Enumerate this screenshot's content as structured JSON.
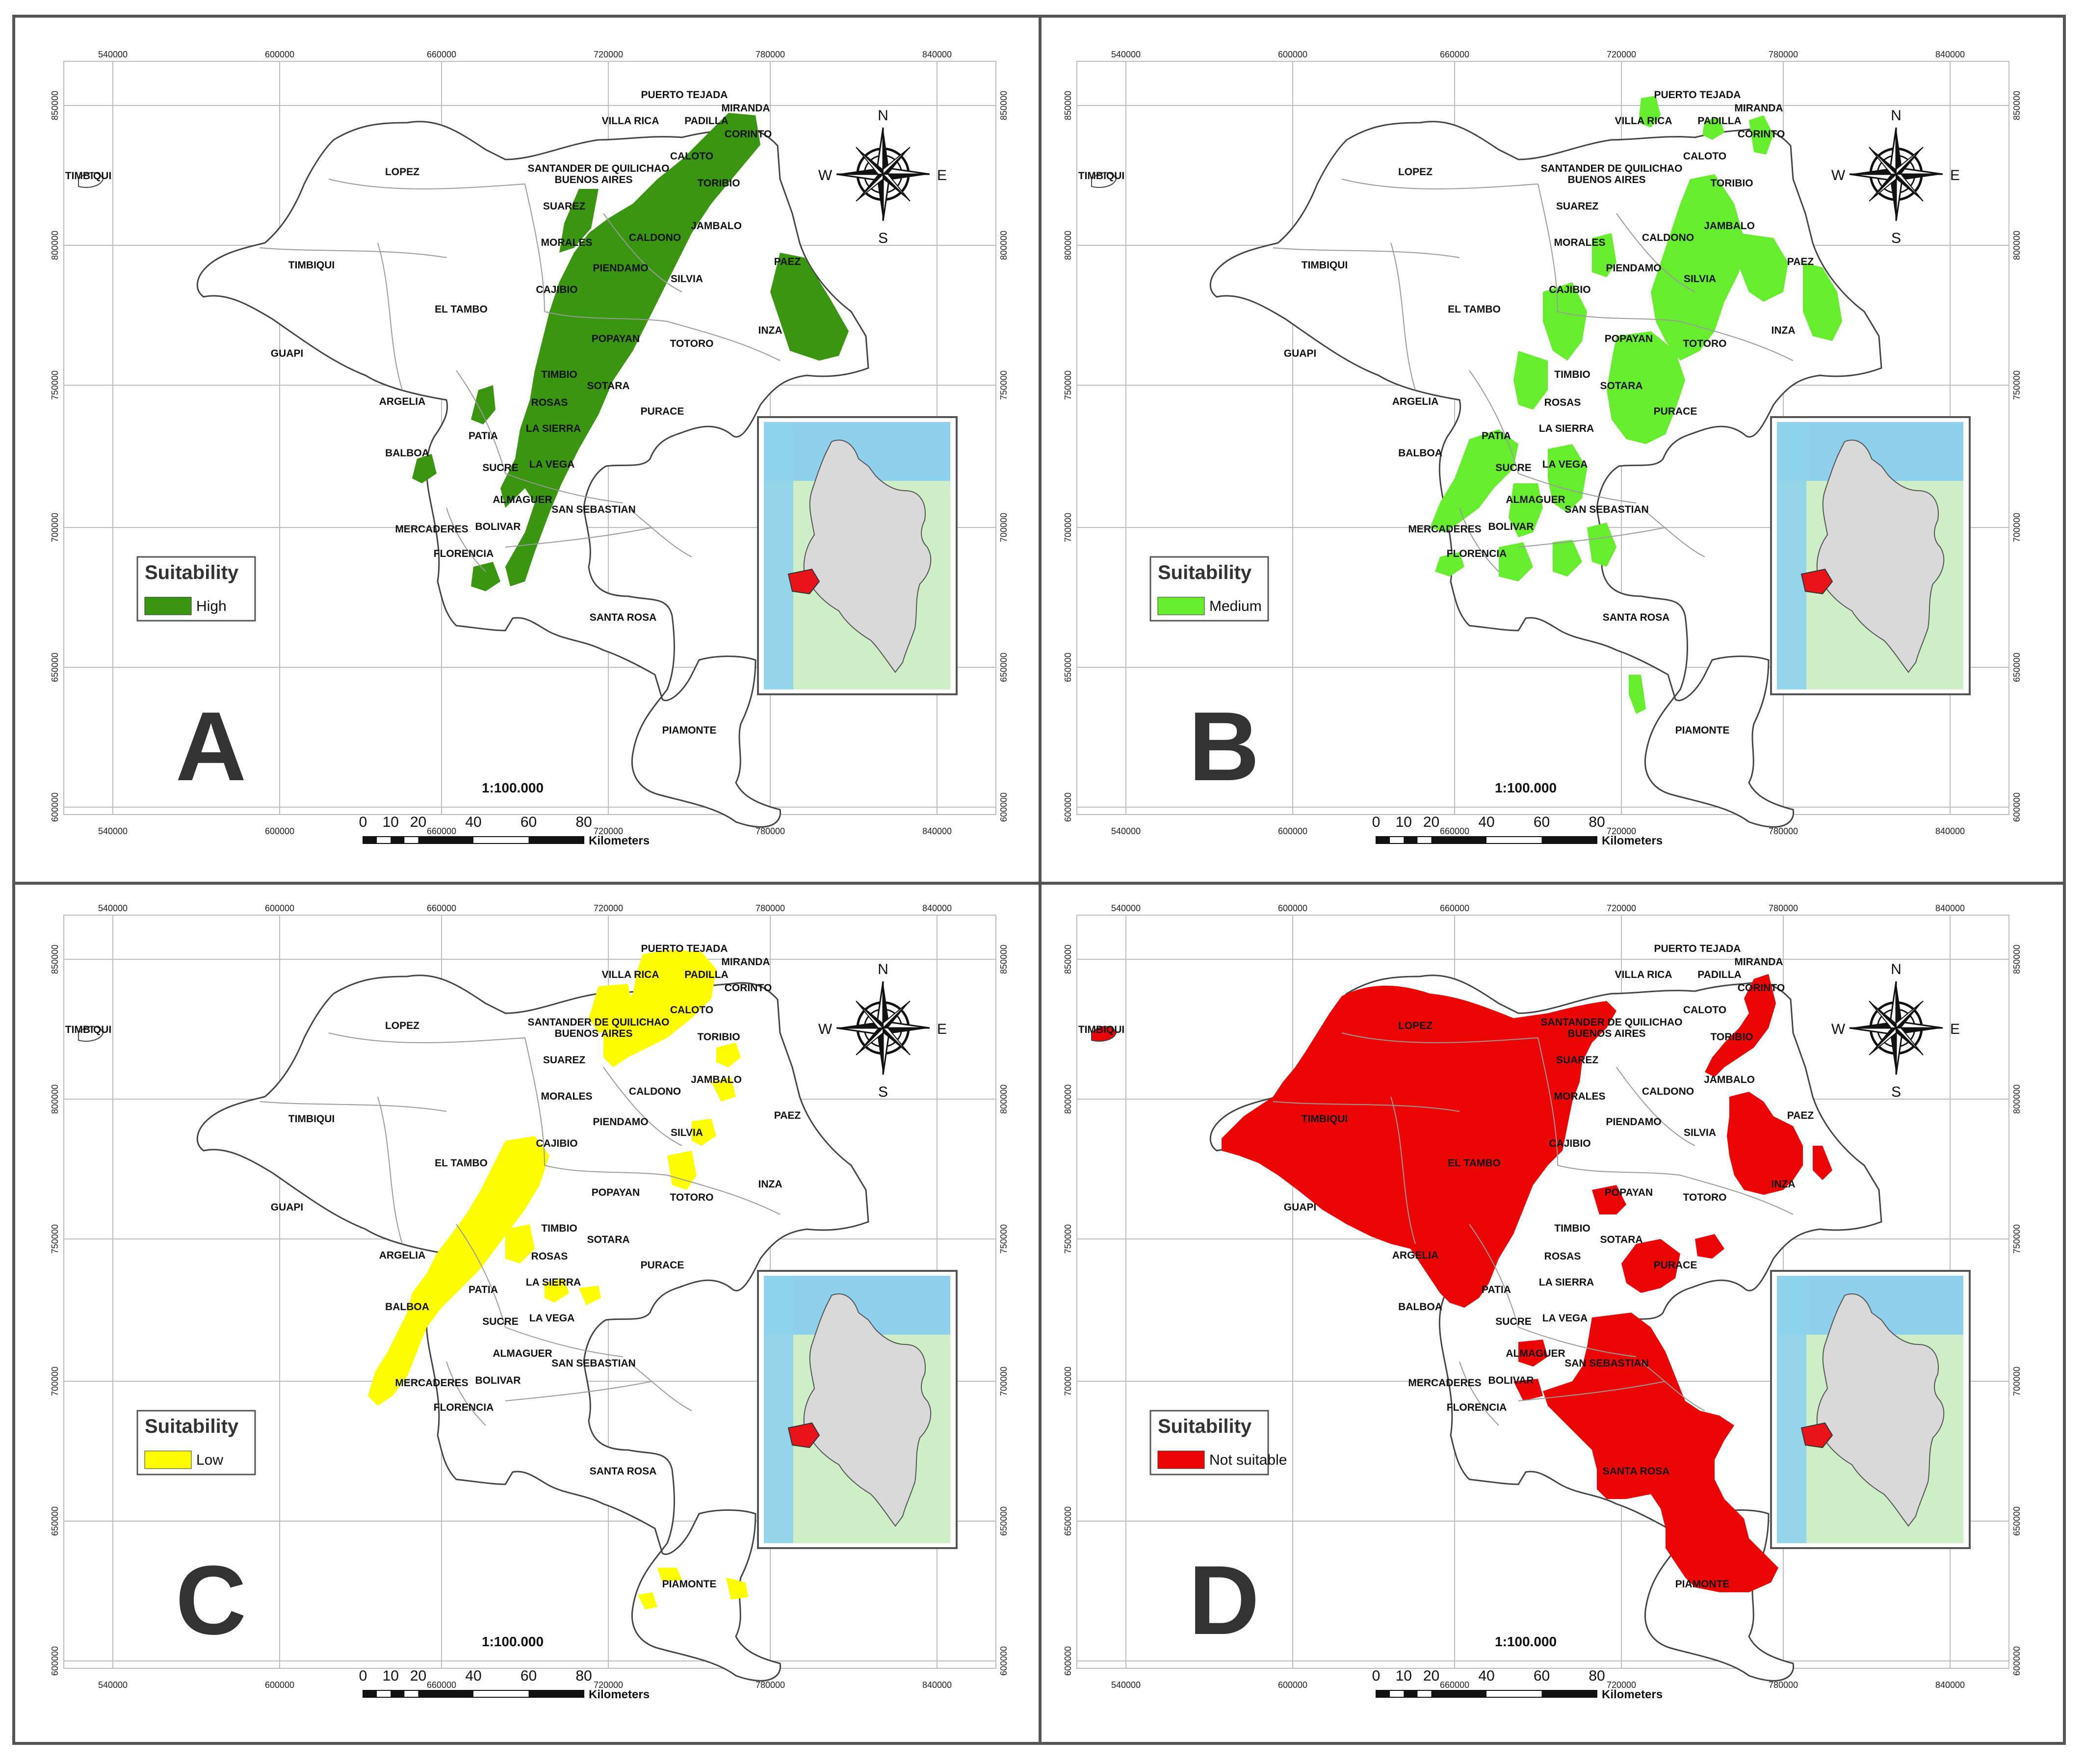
{
  "panels": [
    {
      "letter": "A",
      "legend_title": "Suitability",
      "legend_label": "High",
      "color": "#3a9611",
      "scale_text": "1:100.000",
      "scale_ticks": [
        "0",
        "10",
        "20",
        "40",
        "60",
        "80"
      ],
      "scale_unit": "Kilometers",
      "x_ticks": [
        "540000",
        "600000",
        "660000",
        "720000",
        "780000",
        "840000"
      ],
      "y_ticks": [
        "850000",
        "800000",
        "750000",
        "700000",
        "650000",
        "600000"
      ],
      "compass": {
        "n": "N",
        "s": "S",
        "e": "E",
        "w": "W"
      },
      "places": [
        "PUERTO TEJADA",
        "MIRANDA",
        "PADILLA",
        "VILLA RICA",
        "CORINTO",
        "CALOTO",
        "TIMBIQUI",
        "LOPEZ",
        "SANTANDER DE QUILICHAO",
        "BUENOS AIRES",
        "TORIBIO",
        "SUAREZ",
        "JAMBALO",
        "MORALES",
        "CALDONO",
        "TIMBIQUI",
        "PAEZ",
        "PIENDAMO",
        "SILVIA",
        "CAJIBIO",
        "EL TAMBO",
        "INZA",
        "POPAYAN",
        "TOTORO",
        "GUAPI",
        "TIMBIO",
        "SOTARA",
        "ARGELIA",
        "ROSAS",
        "PURACE",
        "PATIA",
        "LA SIERRA",
        "BALBOA",
        "SUCRE",
        "LA VEGA",
        "ALMAGUER",
        "SAN SEBASTIAN",
        "MERCADERES",
        "BOLIVAR",
        "FLORENCIA",
        "SANTA ROSA",
        "PIAMONTE"
      ]
    },
    {
      "letter": "B",
      "legend_title": "Suitability",
      "legend_label": "Medium",
      "color": "#66ee2e",
      "scale_text": "1:100.000",
      "scale_ticks": [
        "0",
        "10",
        "20",
        "40",
        "60",
        "80"
      ],
      "scale_unit": "Kilometers",
      "x_ticks": [
        "540000",
        "600000",
        "660000",
        "720000",
        "780000",
        "840000"
      ],
      "y_ticks": [
        "850000",
        "800000",
        "750000",
        "700000",
        "650000",
        "600000"
      ],
      "compass": {
        "n": "N",
        "s": "S",
        "e": "E",
        "w": "W"
      },
      "places": [
        "PUERTO TEJADA",
        "MIRANDA",
        "PADILLA",
        "VILLA RICA",
        "CORINTO",
        "CALOTO",
        "TIMBIQUI",
        "LOPEZ",
        "SANTANDER DE QUILICHAO",
        "BUENOS AIRES",
        "TORIBIO",
        "SUAREZ",
        "JAMBALO",
        "MORALES",
        "CALDONO",
        "TIMBIQUI",
        "PAEZ",
        "PIENDAMO",
        "SILVIA",
        "CAJIBIO",
        "EL TAMBO",
        "INZA",
        "POPAYAN",
        "TOTORO",
        "GUAPI",
        "TIMBIO",
        "SOTARA",
        "ARGELIA",
        "ROSAS",
        "PURACE",
        "PATIA",
        "LA SIERRA",
        "BALBOA",
        "SUCRE",
        "LA VEGA",
        "ALMAGUER",
        "SAN SEBASTIAN",
        "MERCADERES",
        "BOLIVAR",
        "FLORENCIA",
        "SANTA ROSA",
        "PIAMONTE"
      ]
    },
    {
      "letter": "C",
      "legend_title": "Suitability",
      "legend_label": "Low",
      "color": "#fdfd00",
      "scale_text": "1:100.000",
      "scale_ticks": [
        "0",
        "10",
        "20",
        "40",
        "60",
        "80"
      ],
      "scale_unit": "Kilometers",
      "x_ticks": [
        "540000",
        "600000",
        "660000",
        "720000",
        "780000",
        "840000"
      ],
      "y_ticks": [
        "850000",
        "800000",
        "750000",
        "700000",
        "650000",
        "600000"
      ],
      "compass": {
        "n": "N",
        "s": "S",
        "e": "E",
        "w": "W"
      },
      "places": [
        "PUERTO TEJADA",
        "MIRANDA",
        "PADILLA",
        "VILLA RICA",
        "CORINTO",
        "CALOTO",
        "TIMBIQUI",
        "LOPEZ",
        "SANTANDER DE QUILICHAO",
        "BUENOS AIRES",
        "TORIBIO",
        "SUAREZ",
        "JAMBALO",
        "MORALES",
        "CALDONO",
        "TIMBIQUI",
        "PAEZ",
        "PIENDAMO",
        "SILVIA",
        "CAJIBIO",
        "EL TAMBO",
        "INZA",
        "POPAYAN",
        "TOTORO",
        "GUAPI",
        "TIMBIO",
        "SOTARA",
        "ARGELIA",
        "ROSAS",
        "PURACE",
        "PATIA",
        "LA SIERRA",
        "BALBOA",
        "SUCRE",
        "LA VEGA",
        "ALMAGUER",
        "SAN SEBASTIAN",
        "MERCADERES",
        "BOLIVAR",
        "FLORENCIA",
        "SANTA ROSA",
        "PIAMONTE"
      ]
    },
    {
      "letter": "D",
      "legend_title": "Suitability",
      "legend_label": "Not suitable",
      "color": "#ec0505",
      "scale_text": "1:100.000",
      "scale_ticks": [
        "0",
        "10",
        "20",
        "40",
        "60",
        "80"
      ],
      "scale_unit": "Kilometers",
      "x_ticks": [
        "540000",
        "600000",
        "660000",
        "720000",
        "780000",
        "840000"
      ],
      "y_ticks": [
        "850000",
        "800000",
        "750000",
        "700000",
        "650000",
        "600000"
      ],
      "compass": {
        "n": "N",
        "s": "S",
        "e": "E",
        "w": "W"
      },
      "places": [
        "PUERTO TEJADA",
        "MIRANDA",
        "PADILLA",
        "VILLA RICA",
        "CORINTO",
        "CALOTO",
        "TIMBIQUI",
        "LOPEZ",
        "SANTANDER DE QUILICHAO",
        "BUENOS AIRES",
        "TORIBIO",
        "SUAREZ",
        "JAMBALO",
        "MORALES",
        "CALDONO",
        "TIMBIQUI",
        "PAEZ",
        "PIENDAMO",
        "SILVIA",
        "CAJIBIO",
        "EL TAMBO",
        "INZA",
        "POPAYAN",
        "TOTORO",
        "GUAPI",
        "TIMBIO",
        "SOTARA",
        "ARGELIA",
        "ROSAS",
        "PURACE",
        "PATIA",
        "LA SIERRA",
        "BALBOA",
        "SUCRE",
        "LA VEGA",
        "ALMAGUER",
        "SAN SEBASTIAN",
        "MERCADERES",
        "BOLIVAR",
        "FLORENCIA",
        "SANTA ROSA",
        "PIAMONTE"
      ]
    }
  ],
  "colors": {
    "frame": "#555555",
    "outline": "#444444",
    "sea": "#8fd1ec",
    "land_bg": "#cdeec6",
    "country": "#d9d9d9",
    "highlight": "#e8141a"
  }
}
